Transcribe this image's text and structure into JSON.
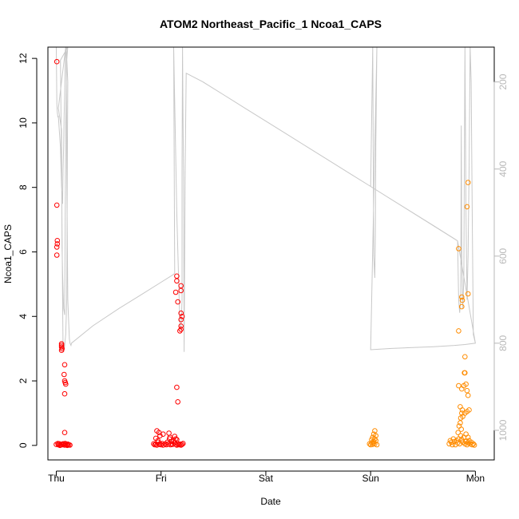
{
  "chart_data": {
    "type": "scatter",
    "title": "ATOM2 Northeast_Pacific_1 Ncoa1_CAPS",
    "xlabel": "Date",
    "ylabel": "Ncoa1_CAPS",
    "x_tick_labels": [
      "Thu",
      "Fri",
      "Sat",
      "Sun",
      "Mon"
    ],
    "xlim": [
      -0.08,
      4.18
    ],
    "ylim": [
      -0.45,
      12.35
    ],
    "y_ticks": [
      0,
      2,
      4,
      6,
      8,
      10,
      12
    ],
    "y_tick_labels": [
      "0",
      "2",
      "4",
      "6",
      "8",
      "10",
      "12"
    ],
    "right_axis": {
      "ticks": [
        200,
        400,
        600,
        800,
        1000
      ],
      "tick_labels": [
        "200",
        "400",
        "600",
        "800",
        "1000"
      ],
      "lim": [
        1068,
        120
      ],
      "color": "#b8b8b8"
    },
    "series": [
      {
        "color": "#ff0000",
        "points": [
          [
            0.005,
            11.9
          ],
          [
            0.005,
            7.45
          ],
          [
            0.01,
            6.35
          ],
          [
            0.01,
            6.25
          ],
          [
            0.005,
            6.15
          ],
          [
            0.005,
            5.9
          ],
          [
            0.05,
            3.15
          ],
          [
            0.05,
            3.1
          ],
          [
            0.05,
            3.05
          ],
          [
            0.055,
            3.0
          ],
          [
            0.05,
            2.95
          ],
          [
            0.08,
            2.5
          ],
          [
            0.075,
            2.2
          ],
          [
            0.08,
            2.0
          ],
          [
            0.085,
            1.95
          ],
          [
            0.09,
            1.9
          ],
          [
            0.08,
            1.6
          ],
          [
            0.08,
            0.4
          ],
          [
            0.0,
            0.03
          ],
          [
            0.02,
            0.02
          ],
          [
            0.03,
            0.05
          ],
          [
            0.04,
            0.01
          ],
          [
            0.05,
            0.03
          ],
          [
            0.06,
            0.02
          ],
          [
            0.07,
            0.04
          ],
          [
            0.08,
            0.01
          ],
          [
            0.09,
            0.03
          ],
          [
            0.1,
            0.02
          ],
          [
            0.11,
            0.04
          ],
          [
            0.12,
            0.02
          ],
          [
            0.13,
            0.01
          ],
          [
            0.015,
            0.06
          ],
          [
            0.035,
            0.0
          ],
          [
            0.065,
            0.05
          ],
          [
            0.085,
            0.06
          ],
          [
            0.105,
            0.0
          ],
          [
            0.93,
            0.05
          ],
          [
            0.94,
            0.02
          ],
          [
            0.95,
            0.04
          ],
          [
            0.96,
            0.01
          ],
          [
            0.97,
            0.1
          ],
          [
            0.98,
            0.03
          ],
          [
            0.99,
            0.05
          ],
          [
            1.0,
            0.02
          ],
          [
            1.01,
            0.06
          ],
          [
            1.02,
            0.01
          ],
          [
            0.95,
            0.22
          ],
          [
            0.97,
            0.15
          ],
          [
            0.96,
            0.45
          ],
          [
            0.98,
            0.4
          ],
          [
            0.99,
            0.3
          ],
          [
            1.02,
            0.35
          ],
          [
            1.04,
            0.05
          ],
          [
            1.05,
            0.02
          ],
          [
            1.06,
            0.1
          ],
          [
            1.07,
            0.04
          ],
          [
            1.08,
            0.2
          ],
          [
            1.09,
            0.02
          ],
          [
            1.1,
            0.05
          ],
          [
            1.11,
            0.03
          ],
          [
            1.12,
            0.15
          ],
          [
            1.13,
            0.08
          ],
          [
            1.14,
            0.03
          ],
          [
            1.15,
            0.01
          ],
          [
            1.16,
            0.05
          ],
          [
            1.17,
            0.02
          ],
          [
            1.18,
            0.04
          ],
          [
            1.19,
            0.01
          ],
          [
            1.2,
            0.03
          ],
          [
            1.21,
            0.06
          ],
          [
            1.085,
            0.25
          ],
          [
            1.1,
            0.12
          ],
          [
            1.13,
            0.28
          ],
          [
            1.14,
            0.2
          ],
          [
            1.15,
            0.18
          ],
          [
            1.075,
            0.38
          ],
          [
            1.15,
            5.25
          ],
          [
            1.15,
            5.1
          ],
          [
            1.14,
            4.75
          ],
          [
            1.19,
            4.95
          ],
          [
            1.19,
            4.8
          ],
          [
            1.16,
            4.45
          ],
          [
            1.19,
            4.1
          ],
          [
            1.2,
            4.0
          ],
          [
            1.19,
            3.9
          ],
          [
            1.19,
            3.7
          ],
          [
            1.19,
            3.6
          ],
          [
            1.18,
            3.55
          ],
          [
            1.15,
            1.8
          ],
          [
            1.16,
            1.35
          ]
        ]
      },
      {
        "color": "#ff8c00",
        "points": [
          [
            2.99,
            0.05
          ],
          [
            3.0,
            0.02
          ],
          [
            3.01,
            0.08
          ],
          [
            3.02,
            0.03
          ],
          [
            3.03,
            0.12
          ],
          [
            3.04,
            0.05
          ],
          [
            3.05,
            0.15
          ],
          [
            3.02,
            0.25
          ],
          [
            3.03,
            0.35
          ],
          [
            3.04,
            0.45
          ],
          [
            3.05,
            0.3
          ],
          [
            3.06,
            0.02
          ],
          [
            3.01,
            0.18
          ],
          [
            3.04,
            0.2
          ],
          [
            3.03,
            0.08
          ],
          [
            3.75,
            0.05
          ],
          [
            3.77,
            0.1
          ],
          [
            3.78,
            0.02
          ],
          [
            3.8,
            0.12
          ],
          [
            3.82,
            0.15
          ],
          [
            3.83,
            0.08
          ],
          [
            3.84,
            0.2
          ],
          [
            3.85,
            0.05
          ],
          [
            3.86,
            0.3
          ],
          [
            3.87,
            0.18
          ],
          [
            3.88,
            0.1
          ],
          [
            3.89,
            0.25
          ],
          [
            3.9,
            0.05
          ],
          [
            3.91,
            0.12
          ],
          [
            3.92,
            0.02
          ],
          [
            3.93,
            0.08
          ],
          [
            3.94,
            0.15
          ],
          [
            3.95,
            0.05
          ],
          [
            3.96,
            0.1
          ],
          [
            3.97,
            0.02
          ],
          [
            3.98,
            0.05
          ],
          [
            3.99,
            0.01
          ],
          [
            3.76,
            0.15
          ],
          [
            3.79,
            0.2
          ],
          [
            3.81,
            0.02
          ],
          [
            3.835,
            0.4
          ],
          [
            3.845,
            0.6
          ],
          [
            3.855,
            0.7
          ],
          [
            3.86,
            0.85
          ],
          [
            3.865,
            0.5
          ],
          [
            3.87,
            1.0
          ],
          [
            3.875,
            1.1
          ],
          [
            3.88,
            0.9
          ],
          [
            3.9,
            1.0
          ],
          [
            3.92,
            1.05
          ],
          [
            3.94,
            1.1
          ],
          [
            3.91,
            0.35
          ],
          [
            3.93,
            0.25
          ],
          [
            3.855,
            1.2
          ],
          [
            3.84,
            1.85
          ],
          [
            3.87,
            1.75
          ],
          [
            3.89,
            1.85
          ],
          [
            3.91,
            1.9
          ],
          [
            3.92,
            1.7
          ],
          [
            3.93,
            1.55
          ],
          [
            3.895,
            2.25
          ],
          [
            3.9,
            2.25
          ],
          [
            3.9,
            2.75
          ],
          [
            3.84,
            6.1
          ],
          [
            3.87,
            4.6
          ],
          [
            3.875,
            4.5
          ],
          [
            3.87,
            4.3
          ],
          [
            3.93,
            8.15
          ],
          [
            3.92,
            7.4
          ],
          [
            3.93,
            4.7
          ],
          [
            3.84,
            3.55
          ]
        ]
      }
    ],
    "depth_line": {
      "color": "#c8c8c8",
      "points": [
        [
          0.0,
          120
        ],
        [
          0.005,
          250
        ],
        [
          0.01,
          270
        ],
        [
          0.015,
          280
        ],
        [
          0.02,
          279
        ],
        [
          0.03,
          315
        ],
        [
          0.04,
          350
        ],
        [
          0.05,
          440
        ],
        [
          0.06,
          480
        ],
        [
          0.065,
          400
        ],
        [
          0.07,
          350
        ],
        [
          0.075,
          280
        ],
        [
          0.08,
          230
        ],
        [
          0.085,
          150
        ],
        [
          0.09,
          120
        ],
        [
          0.02,
          260
        ],
        [
          0.05,
          310
        ],
        [
          0.055,
          580
        ],
        [
          0.06,
          640
        ],
        [
          0.07,
          720
        ],
        [
          0.08,
          735
        ],
        [
          0.085,
          500
        ],
        [
          0.09,
          300
        ],
        [
          0.1,
          150
        ],
        [
          0.11,
          120
        ],
        [
          0.04,
          150
        ],
        [
          0.05,
          400
        ],
        [
          0.06,
          700
        ],
        [
          0.065,
          815
        ],
        [
          0.07,
          820
        ],
        [
          0.08,
          805
        ],
        [
          0.09,
          780
        ],
        [
          0.1,
          700
        ],
        [
          0.105,
          400
        ],
        [
          0.11,
          200
        ],
        [
          0.095,
          120
        ],
        [
          0.1,
          400
        ],
        [
          0.11,
          700
        ],
        [
          0.12,
          760
        ],
        [
          0.125,
          790
        ],
        [
          0.13,
          800
        ],
        [
          0.14,
          805
        ],
        [
          0.145,
          800
        ],
        [
          0.35,
          760
        ],
        [
          0.6,
          720
        ],
        [
          0.8,
          690
        ],
        [
          1.0,
          660
        ],
        [
          1.1,
          645
        ],
        [
          1.13,
          640
        ],
        [
          1.13,
          640
        ],
        [
          1.12,
          120
        ],
        [
          1.15,
          500
        ],
        [
          1.18,
          760
        ],
        [
          1.19,
          770
        ],
        [
          1.2,
          700
        ],
        [
          1.2,
          400
        ],
        [
          1.205,
          120
        ],
        [
          1.205,
          120
        ],
        [
          1.21,
          300
        ],
        [
          1.215,
          420
        ],
        [
          1.22,
          820
        ],
        [
          1.23,
          400
        ],
        [
          1.24,
          180
        ],
        [
          1.24,
          180
        ],
        [
          1.4,
          200
        ],
        [
          1.6,
          230
        ],
        [
          1.8,
          260
        ],
        [
          2.0,
          290
        ],
        [
          2.2,
          320
        ],
        [
          2.4,
          350
        ],
        [
          2.6,
          380
        ],
        [
          2.8,
          410
        ],
        [
          3.0,
          440
        ],
        [
          3.0,
          440
        ],
        [
          3.2,
          470
        ],
        [
          3.4,
          500
        ],
        [
          3.6,
          530
        ],
        [
          3.8,
          560
        ],
        [
          3.83,
          565
        ],
        [
          3.0,
          440
        ],
        [
          3.02,
          120
        ],
        [
          3.03,
          600
        ],
        [
          3.04,
          650
        ],
        [
          3.045,
          550
        ],
        [
          3.05,
          340
        ],
        [
          3.06,
          120
        ],
        [
          3.0,
          815
        ],
        [
          3.2,
          812
        ],
        [
          3.4,
          810
        ],
        [
          3.6,
          808
        ],
        [
          3.8,
          805
        ],
        [
          3.9,
          803
        ],
        [
          4.0,
          800
        ],
        [
          3.83,
          565
        ],
        [
          3.84,
          700
        ],
        [
          3.85,
          730
        ],
        [
          3.86,
          700
        ],
        [
          3.865,
          300
        ],
        [
          3.87,
          600
        ],
        [
          3.88,
          720
        ],
        [
          3.89,
          650
        ],
        [
          3.89,
          650
        ],
        [
          3.9,
          120
        ],
        [
          3.91,
          500
        ],
        [
          3.92,
          700
        ],
        [
          3.93,
          600
        ],
        [
          3.94,
          400
        ],
        [
          3.95,
          120
        ],
        [
          3.95,
          120
        ],
        [
          3.96,
          200
        ],
        [
          3.97,
          500
        ],
        [
          3.98,
          780
        ],
        [
          3.99,
          790
        ],
        [
          4.0,
          800
        ]
      ]
    },
    "grid": false,
    "legend": "none"
  }
}
